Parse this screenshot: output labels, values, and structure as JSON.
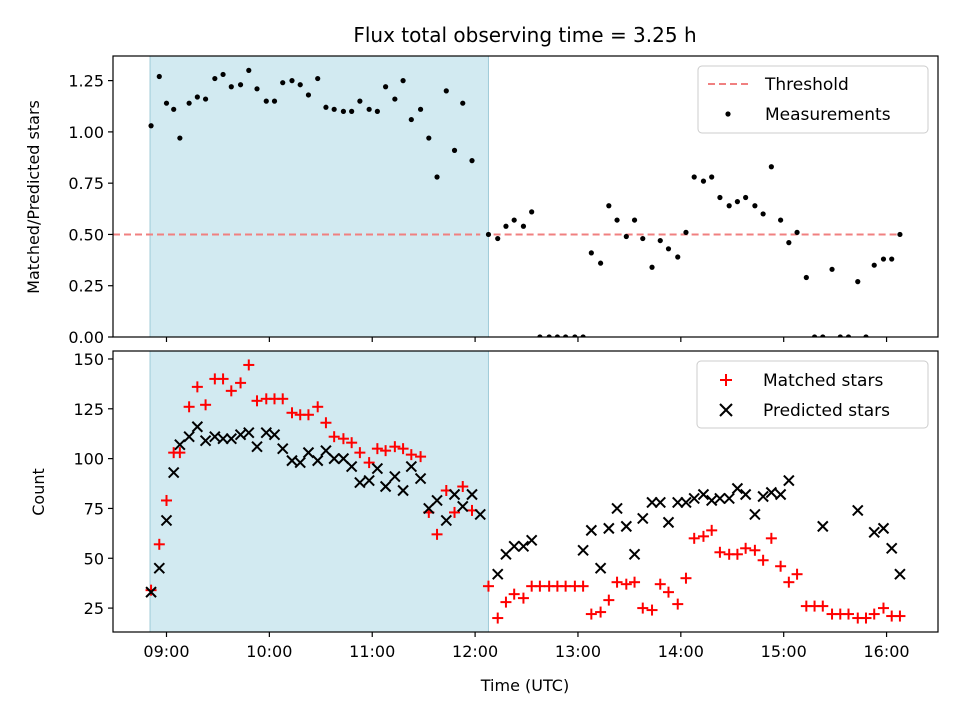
{
  "chart_data": [
    {
      "type": "scatter",
      "title": "Flux total observing time = 3.25 h",
      "ylabel": "Matched/Predicted stars",
      "xlabel": "",
      "xlim": [
        8.48,
        16.5
      ],
      "ylim": [
        0,
        1.37
      ],
      "yticks": [
        0,
        0.25,
        0.5,
        0.75,
        1.0,
        1.25
      ],
      "ytick_labels": [
        "0.00",
        "0.25",
        "0.50",
        "0.75",
        "1.00",
        "1.25"
      ],
      "shaded_region": {
        "x_start": 8.84,
        "x_end": 12.13,
        "color": "#add8e6"
      },
      "legend_position": "upper right",
      "threshold": {
        "name": "Threshold",
        "value": 0.5,
        "color": "#f08080"
      },
      "series": [
        {
          "name": "Measurements",
          "marker": "dot",
          "color": "#000000",
          "points": [
            [
              8.85,
              1.03
            ],
            [
              8.93,
              1.27
            ],
            [
              9.0,
              1.14
            ],
            [
              9.07,
              1.11
            ],
            [
              9.13,
              0.97
            ],
            [
              9.22,
              1.14
            ],
            [
              9.3,
              1.17
            ],
            [
              9.38,
              1.16
            ],
            [
              9.47,
              1.26
            ],
            [
              9.55,
              1.28
            ],
            [
              9.63,
              1.22
            ],
            [
              9.72,
              1.23
            ],
            [
              9.8,
              1.3
            ],
            [
              9.88,
              1.21
            ],
            [
              9.97,
              1.15
            ],
            [
              10.05,
              1.15
            ],
            [
              10.13,
              1.24
            ],
            [
              10.22,
              1.25
            ],
            [
              10.3,
              1.23
            ],
            [
              10.38,
              1.18
            ],
            [
              10.47,
              1.26
            ],
            [
              10.55,
              1.12
            ],
            [
              10.63,
              1.11
            ],
            [
              10.72,
              1.1
            ],
            [
              10.8,
              1.1
            ],
            [
              10.88,
              1.15
            ],
            [
              10.97,
              1.11
            ],
            [
              11.05,
              1.1
            ],
            [
              11.13,
              1.22
            ],
            [
              11.22,
              1.16
            ],
            [
              11.3,
              1.25
            ],
            [
              11.38,
              1.06
            ],
            [
              11.47,
              1.11
            ],
            [
              11.55,
              0.97
            ],
            [
              11.63,
              0.78
            ],
            [
              11.72,
              1.2
            ],
            [
              11.8,
              0.91
            ],
            [
              11.88,
              1.14
            ],
            [
              11.97,
              0.86
            ],
            [
              12.13,
              0.5
            ],
            [
              12.22,
              0.48
            ],
            [
              12.3,
              0.54
            ],
            [
              12.38,
              0.57
            ],
            [
              12.47,
              0.54
            ],
            [
              12.55,
              0.61
            ],
            [
              12.63,
              0.0
            ],
            [
              12.72,
              0.0
            ],
            [
              12.8,
              0.0
            ],
            [
              12.88,
              0.0
            ],
            [
              12.97,
              0.0
            ],
            [
              13.05,
              0.0
            ],
            [
              13.13,
              0.41
            ],
            [
              13.22,
              0.36
            ],
            [
              13.3,
              0.64
            ],
            [
              13.38,
              0.57
            ],
            [
              13.47,
              0.49
            ],
            [
              13.55,
              0.57
            ],
            [
              13.63,
              0.48
            ],
            [
              13.72,
              0.34
            ],
            [
              13.8,
              0.47
            ],
            [
              13.88,
              0.43
            ],
            [
              13.97,
              0.39
            ],
            [
              14.05,
              0.51
            ],
            [
              14.13,
              0.78
            ],
            [
              14.22,
              0.76
            ],
            [
              14.3,
              0.78
            ],
            [
              14.38,
              0.68
            ],
            [
              14.47,
              0.64
            ],
            [
              14.55,
              0.66
            ],
            [
              14.63,
              0.68
            ],
            [
              14.72,
              0.64
            ],
            [
              14.8,
              0.6
            ],
            [
              14.88,
              0.83
            ],
            [
              14.97,
              0.57
            ],
            [
              15.05,
              0.46
            ],
            [
              15.13,
              0.51
            ],
            [
              15.22,
              0.29
            ],
            [
              15.3,
              0.0
            ],
            [
              15.38,
              0.0
            ],
            [
              15.47,
              0.33
            ],
            [
              15.55,
              0.0
            ],
            [
              15.63,
              0.0
            ],
            [
              15.72,
              0.27
            ],
            [
              15.8,
              0.0
            ],
            [
              15.88,
              0.35
            ],
            [
              15.97,
              0.38
            ],
            [
              16.05,
              0.38
            ],
            [
              16.13,
              0.5
            ]
          ]
        }
      ]
    },
    {
      "type": "scatter",
      "title": "",
      "ylabel": "Count",
      "xlabel": "Time (UTC)",
      "xlim": [
        8.48,
        16.5
      ],
      "ylim": [
        13,
        154
      ],
      "yticks": [
        25,
        50,
        75,
        100,
        125,
        150
      ],
      "ytick_labels": [
        "25",
        "50",
        "75",
        "100",
        "125",
        "150"
      ],
      "xticks": [
        9,
        10,
        11,
        12,
        13,
        14,
        15,
        16
      ],
      "xtick_labels": [
        "09:00",
        "10:00",
        "11:00",
        "12:00",
        "13:00",
        "14:00",
        "15:00",
        "16:00"
      ],
      "shaded_region": {
        "x_start": 8.84,
        "x_end": 12.13,
        "color": "#add8e6"
      },
      "legend_position": "upper right",
      "series": [
        {
          "name": "Matched stars",
          "marker": "plus",
          "color": "#ff0000",
          "points": [
            [
              8.85,
              34
            ],
            [
              8.93,
              57
            ],
            [
              9.0,
              79
            ],
            [
              9.07,
              103
            ],
            [
              9.13,
              103
            ],
            [
              9.22,
              126
            ],
            [
              9.3,
              136
            ],
            [
              9.38,
              127
            ],
            [
              9.47,
              140
            ],
            [
              9.55,
              140
            ],
            [
              9.63,
              134
            ],
            [
              9.72,
              138
            ],
            [
              9.8,
              147
            ],
            [
              9.88,
              129
            ],
            [
              9.97,
              130
            ],
            [
              10.05,
              130
            ],
            [
              10.13,
              130
            ],
            [
              10.22,
              123
            ],
            [
              10.3,
              122
            ],
            [
              10.38,
              122
            ],
            [
              10.47,
              126
            ],
            [
              10.55,
              118
            ],
            [
              10.63,
              111
            ],
            [
              10.72,
              110
            ],
            [
              10.8,
              108
            ],
            [
              10.88,
              103
            ],
            [
              10.97,
              98
            ],
            [
              11.05,
              105
            ],
            [
              11.13,
              104
            ],
            [
              11.22,
              106
            ],
            [
              11.3,
              105
            ],
            [
              11.38,
              102
            ],
            [
              11.47,
              101
            ],
            [
              11.55,
              73
            ],
            [
              11.63,
              62
            ],
            [
              11.72,
              84
            ],
            [
              11.8,
              73
            ],
            [
              11.88,
              86
            ],
            [
              11.97,
              74
            ],
            [
              12.13,
              36
            ],
            [
              12.22,
              20
            ],
            [
              12.3,
              28
            ],
            [
              12.38,
              32
            ],
            [
              12.47,
              30
            ],
            [
              12.55,
              36
            ],
            [
              12.63,
              36
            ],
            [
              12.72,
              36
            ],
            [
              12.8,
              36
            ],
            [
              12.88,
              36
            ],
            [
              12.97,
              36
            ],
            [
              13.05,
              36
            ],
            [
              13.13,
              22
            ],
            [
              13.22,
              23
            ],
            [
              13.3,
              29
            ],
            [
              13.38,
              38
            ],
            [
              13.47,
              37
            ],
            [
              13.55,
              38
            ],
            [
              13.63,
              25
            ],
            [
              13.72,
              24
            ],
            [
              13.8,
              37
            ],
            [
              13.88,
              33
            ],
            [
              13.97,
              27
            ],
            [
              14.05,
              40
            ],
            [
              14.13,
              60
            ],
            [
              14.22,
              61
            ],
            [
              14.3,
              64
            ],
            [
              14.38,
              53
            ],
            [
              14.47,
              52
            ],
            [
              14.55,
              52
            ],
            [
              14.63,
              55
            ],
            [
              14.72,
              54
            ],
            [
              14.8,
              49
            ],
            [
              14.88,
              60
            ],
            [
              14.97,
              46
            ],
            [
              15.05,
              38
            ],
            [
              15.13,
              42
            ],
            [
              15.22,
              26
            ],
            [
              15.3,
              26
            ],
            [
              15.38,
              26
            ],
            [
              15.47,
              22
            ],
            [
              15.55,
              22
            ],
            [
              15.63,
              22
            ],
            [
              15.72,
              20
            ],
            [
              15.8,
              20
            ],
            [
              15.88,
              22
            ],
            [
              15.97,
              25
            ],
            [
              16.05,
              21
            ],
            [
              16.13,
              21
            ]
          ]
        },
        {
          "name": "Predicted stars",
          "marker": "x",
          "color": "#000000",
          "points": [
            [
              8.85,
              33
            ],
            [
              8.93,
              45
            ],
            [
              9.0,
              69
            ],
            [
              9.07,
              93
            ],
            [
              9.13,
              107
            ],
            [
              9.22,
              111
            ],
            [
              9.3,
              116
            ],
            [
              9.38,
              109
            ],
            [
              9.47,
              111
            ],
            [
              9.55,
              110
            ],
            [
              9.63,
              110
            ],
            [
              9.72,
              112
            ],
            [
              9.8,
              113
            ],
            [
              9.88,
              106
            ],
            [
              9.97,
              113
            ],
            [
              10.05,
              112
            ],
            [
              10.13,
              105
            ],
            [
              10.22,
              99
            ],
            [
              10.3,
              98
            ],
            [
              10.38,
              103
            ],
            [
              10.47,
              99
            ],
            [
              10.55,
              104
            ],
            [
              10.63,
              100
            ],
            [
              10.72,
              100
            ],
            [
              10.8,
              96
            ],
            [
              10.88,
              88
            ],
            [
              10.97,
              89
            ],
            [
              11.05,
              95
            ],
            [
              11.13,
              86
            ],
            [
              11.22,
              91
            ],
            [
              11.3,
              84
            ],
            [
              11.38,
              96
            ],
            [
              11.47,
              90
            ],
            [
              11.55,
              75
            ],
            [
              11.63,
              79
            ],
            [
              11.72,
              69
            ],
            [
              11.8,
              82
            ],
            [
              11.88,
              76
            ],
            [
              11.97,
              82
            ],
            [
              12.05,
              72
            ],
            [
              12.22,
              42
            ],
            [
              12.3,
              52
            ],
            [
              12.38,
              56
            ],
            [
              12.47,
              56
            ],
            [
              12.55,
              59
            ],
            [
              13.05,
              54
            ],
            [
              13.13,
              64
            ],
            [
              13.22,
              45
            ],
            [
              13.3,
              65
            ],
            [
              13.38,
              75
            ],
            [
              13.47,
              66
            ],
            [
              13.55,
              52
            ],
            [
              13.63,
              70
            ],
            [
              13.72,
              78
            ],
            [
              13.8,
              78
            ],
            [
              13.88,
              68
            ],
            [
              13.97,
              78
            ],
            [
              14.05,
              78
            ],
            [
              14.13,
              80
            ],
            [
              14.22,
              82
            ],
            [
              14.3,
              79
            ],
            [
              14.38,
              80
            ],
            [
              14.47,
              80
            ],
            [
              14.55,
              85
            ],
            [
              14.63,
              82
            ],
            [
              14.72,
              72
            ],
            [
              14.8,
              81
            ],
            [
              14.88,
              83
            ],
            [
              14.97,
              82
            ],
            [
              15.05,
              89
            ],
            [
              15.38,
              66
            ],
            [
              15.72,
              74
            ],
            [
              15.88,
              63
            ],
            [
              15.97,
              65
            ],
            [
              16.05,
              55
            ],
            [
              16.13,
              42
            ]
          ]
        }
      ]
    }
  ]
}
